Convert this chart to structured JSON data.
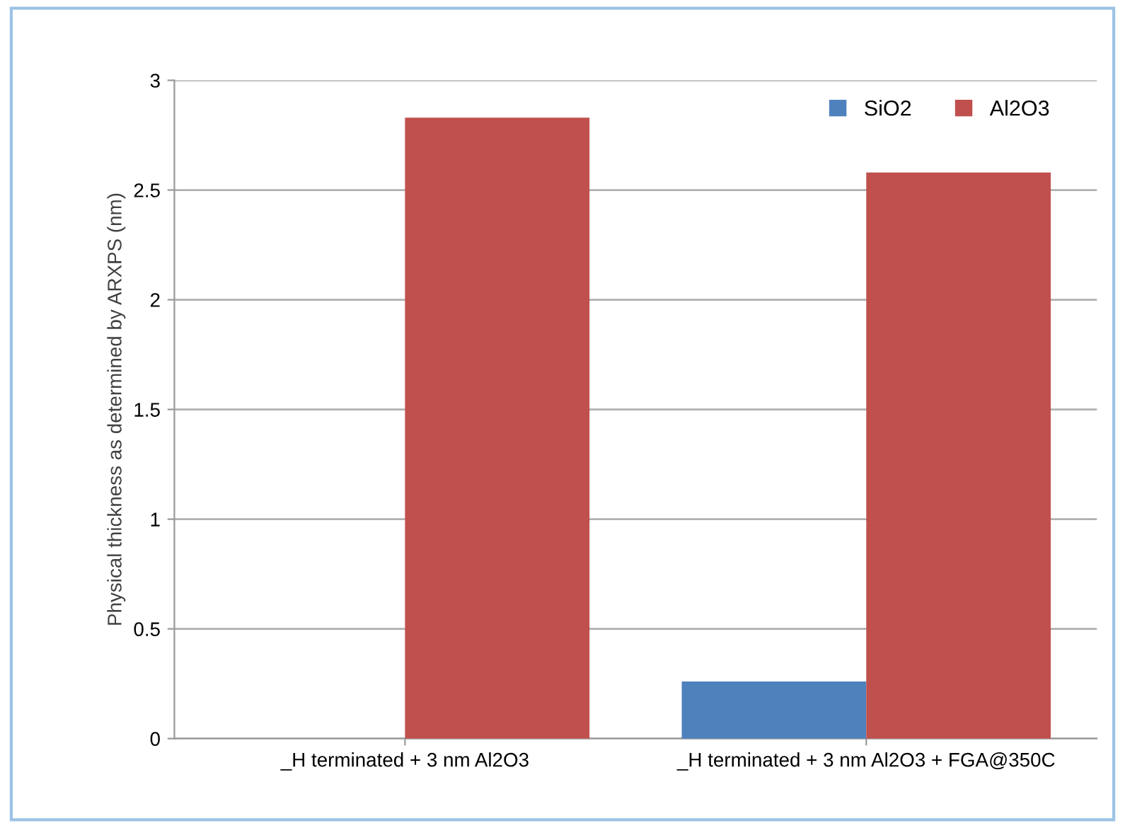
{
  "chart_data": {
    "type": "bar",
    "ylabel": "Physical thickness as determined by ARXPS (nm)",
    "categories": [
      "_H terminated + 3 nm Al2O3",
      "_H terminated + 3 nm Al2O3 + FGA@350C"
    ],
    "series": [
      {
        "name": "SiO2",
        "color": "#4f81bd",
        "values": [
          0,
          0.26
        ]
      },
      {
        "name": "Al2O3",
        "color": "#c0504d",
        "values": [
          2.83,
          2.58
        ]
      }
    ],
    "ylim": [
      0,
      3
    ],
    "yticks": [
      0,
      0.5,
      1,
      1.5,
      2,
      2.5,
      3
    ],
    "grid": "y",
    "legend": "top right"
  }
}
